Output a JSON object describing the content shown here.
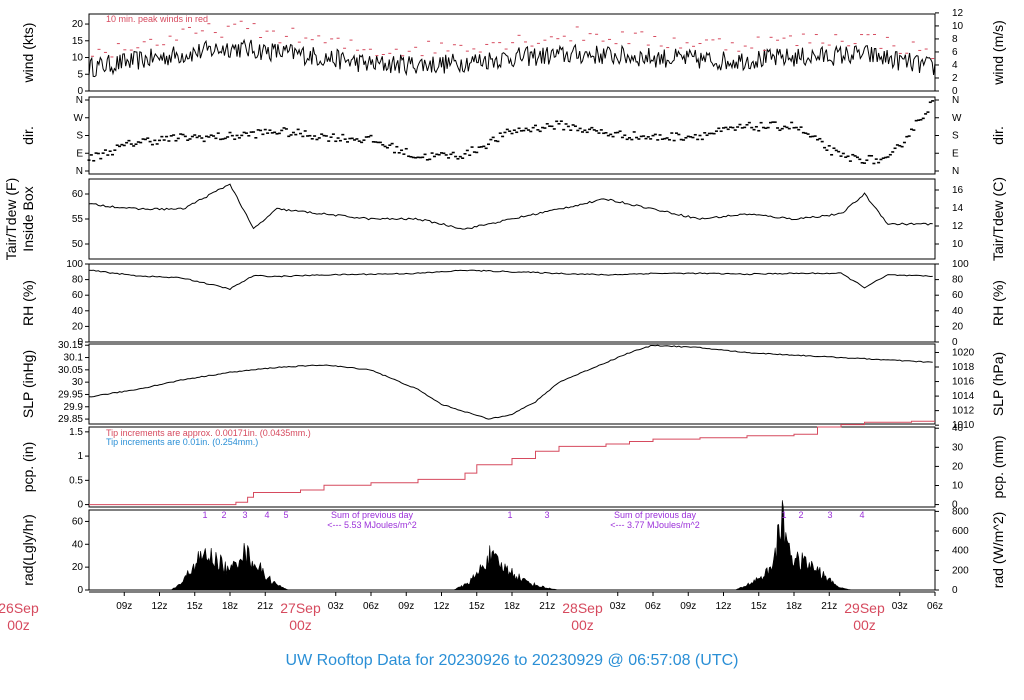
{
  "chart_data": [
    {
      "type": "line",
      "ylabel_left": "wind (kts)",
      "ylabel_right": "wind (m/s)",
      "annotation": "10 min. peak winds in red",
      "ylim": [
        0,
        23
      ],
      "yticks_left": [
        0,
        5,
        10,
        15,
        20
      ],
      "yticks_right": [
        0,
        2,
        4,
        6,
        8,
        10,
        12
      ],
      "series": [
        {
          "name": "wind",
          "color": "#000000",
          "x": [
            0,
            6,
            12,
            18,
            24,
            30,
            36,
            42,
            48,
            54,
            60,
            66,
            72
          ],
          "y": [
            7,
            10,
            13,
            11,
            8,
            8,
            10,
            11,
            10,
            9,
            10,
            11,
            7
          ]
        },
        {
          "name": "10 min. peak winds",
          "color": "#d64a5e",
          "x": [
            0,
            6,
            12,
            18,
            24,
            30,
            36,
            42,
            48,
            54,
            60,
            66,
            72
          ],
          "y": [
            11,
            15,
            19,
            16,
            12,
            13,
            15,
            17,
            15,
            14,
            15,
            16,
            11
          ]
        }
      ]
    },
    {
      "type": "scatter",
      "ylabel_left": "dir.",
      "ylabel_right": "dir.",
      "yticks_left": [
        "N",
        "E",
        "S",
        "W",
        "N"
      ],
      "yticks_right": [
        "N",
        "E",
        "S",
        "W",
        "N"
      ],
      "series": [
        {
          "name": "direction",
          "x": [
            0,
            4,
            8,
            12,
            16,
            20,
            24,
            28,
            32,
            36,
            40,
            44,
            48,
            52,
            56,
            60,
            64,
            68,
            72
          ],
          "y": [
            70,
            150,
            170,
            175,
            200,
            175,
            160,
            80,
            90,
            200,
            230,
            190,
            170,
            180,
            220,
            225,
            80,
            60,
            350
          ]
        }
      ]
    },
    {
      "type": "line",
      "ylabel_left": "Tair/Tdew (F) Inside Box",
      "ylabel_right": "Tair/Tdew (C)",
      "ylim": [
        47,
        63
      ],
      "yticks_left": [
        50,
        55,
        60
      ],
      "yticks_right": [
        10,
        12,
        14,
        16
      ],
      "series": [
        {
          "name": "temperature",
          "x": [
            0,
            4,
            8,
            12,
            14,
            16,
            20,
            24,
            28,
            32,
            36,
            40,
            44,
            48,
            52,
            56,
            60,
            64,
            66,
            68,
            72
          ],
          "y": [
            58,
            57,
            57,
            62,
            53,
            57,
            56,
            55,
            55,
            53,
            55,
            57,
            59,
            57,
            55,
            56,
            55,
            56,
            60,
            54,
            54
          ]
        }
      ]
    },
    {
      "type": "line",
      "ylabel_left": "RH (%)",
      "ylabel_right": "RH (%)",
      "ylim": [
        0,
        100
      ],
      "yticks_left": [
        0,
        20,
        40,
        60,
        80,
        100
      ],
      "yticks_right": [
        0,
        20,
        40,
        60,
        80,
        100
      ],
      "series": [
        {
          "name": "RH",
          "x": [
            0,
            4,
            8,
            12,
            14,
            16,
            20,
            24,
            28,
            32,
            36,
            40,
            44,
            48,
            52,
            56,
            60,
            64,
            66,
            68,
            72
          ],
          "y": [
            92,
            85,
            82,
            68,
            85,
            84,
            86,
            87,
            88,
            92,
            90,
            88,
            86,
            88,
            88,
            87,
            88,
            88,
            70,
            86,
            84
          ]
        }
      ]
    },
    {
      "type": "line",
      "ylabel_left": "SLP (inHg)",
      "ylabel_right": "SLP (hPa)",
      "ylim": [
        29.83,
        30.155
      ],
      "yticks_left": [
        29.85,
        29.9,
        29.95,
        30.0,
        30.05,
        30.1,
        30.15
      ],
      "yticks_right": [
        1010,
        1012,
        1014,
        1016,
        1018,
        1020
      ],
      "series": [
        {
          "name": "SLP",
          "x": [
            0,
            4,
            8,
            12,
            16,
            20,
            24,
            28,
            30,
            32,
            34,
            36,
            38,
            40,
            42,
            44,
            46,
            48,
            52,
            56,
            60,
            64,
            68,
            72
          ],
          "y": [
            29.94,
            29.97,
            30.01,
            30.04,
            30.06,
            30.07,
            30.05,
            29.97,
            29.91,
            29.88,
            29.85,
            29.87,
            29.92,
            30.0,
            30.04,
            30.08,
            30.12,
            30.15,
            30.14,
            30.12,
            30.11,
            30.1,
            30.09,
            30.08
          ]
        }
      ]
    },
    {
      "type": "line",
      "ylabel_left": "pcp. (in)",
      "ylabel_right": "pcp. (mm)",
      "annotation_1": "Tip increments are approx. 0.00171in. (0.0435mm.)",
      "annotation_2": "Tip increments are 0.01in. (0.254mm.)",
      "ylim": [
        -0.05,
        1.6
      ],
      "yticks_left": [
        0.0,
        0.5,
        1.0,
        1.5
      ],
      "yticks_right": [
        0,
        10,
        20,
        30,
        40
      ],
      "series": [
        {
          "name": "pcp",
          "color": "#d64a5e",
          "x": [
            0,
            12,
            12.5,
            13.5,
            14,
            18,
            20,
            24,
            28,
            32,
            33,
            36,
            38,
            40,
            44,
            46,
            48,
            52,
            56,
            60,
            62,
            64,
            66,
            70,
            72
          ],
          "y": [
            0,
            0,
            0.05,
            0.15,
            0.25,
            0.3,
            0.4,
            0.45,
            0.52,
            0.65,
            0.82,
            0.95,
            1.1,
            1.2,
            1.25,
            1.3,
            1.35,
            1.38,
            1.42,
            1.45,
            1.6,
            1.65,
            1.7,
            1.72,
            1.72
          ]
        }
      ]
    },
    {
      "type": "area",
      "ylabel_left": "rad(Lgly/hr)",
      "ylabel_right": "rad (W/m^2)",
      "ylim": [
        0,
        70
      ],
      "yticks_left": [
        0,
        20,
        40,
        60
      ],
      "yticks_right": [
        0,
        200,
        400,
        600,
        800
      ],
      "sum_label_1": "Sum of previous day",
      "sum_value_1": "<--- 5.53 MJoules/m^2",
      "sum_label_2": "Sum of previous day",
      "sum_value_2": "<--- 3.77 MJoules/m^2",
      "markers_day1": [
        "1",
        "2",
        "3",
        "4",
        "5"
      ],
      "markers_day2": [
        "1",
        "3"
      ],
      "markers_day3": [
        "1",
        "2",
        "3",
        "4"
      ],
      "series": [
        {
          "name": "radiation",
          "x": [
            7,
            8,
            9,
            10,
            11,
            12,
            13,
            14,
            15,
            16,
            17,
            31,
            32,
            33,
            34,
            35,
            36,
            37,
            38,
            39,
            40,
            41,
            55,
            56,
            57,
            58,
            59,
            60,
            61,
            62,
            63,
            64,
            65
          ],
          "y": [
            0,
            8,
            28,
            35,
            30,
            18,
            40,
            30,
            15,
            5,
            0,
            0,
            5,
            15,
            35,
            25,
            18,
            10,
            5,
            2,
            0,
            0,
            0,
            5,
            12,
            20,
            70,
            30,
            28,
            20,
            10,
            2,
            0
          ]
        }
      ]
    }
  ],
  "x_axis": {
    "hour_ticks": [
      "09z",
      "12z",
      "15z",
      "18z",
      "21z",
      "03z",
      "06z",
      "09z",
      "12z",
      "15z",
      "18z",
      "21z",
      "03z",
      "06z",
      "09z",
      "12z",
      "15z",
      "18z",
      "21z",
      "03z",
      "06z"
    ],
    "day_labels": [
      {
        "date": "26Sep",
        "time": "00z"
      },
      {
        "date": "27Sep",
        "time": "00z"
      },
      {
        "date": "28Sep",
        "time": "00z"
      },
      {
        "date": "29Sep",
        "time": "00z"
      }
    ]
  },
  "footer": "UW Rooftop Data for 20230926  to  20230929 @ 06:57:08  (UTC)",
  "colors": {
    "black": "#000000",
    "red": "#d64a5e",
    "blue": "#2a8fd6",
    "purple": "#9b30d9"
  }
}
